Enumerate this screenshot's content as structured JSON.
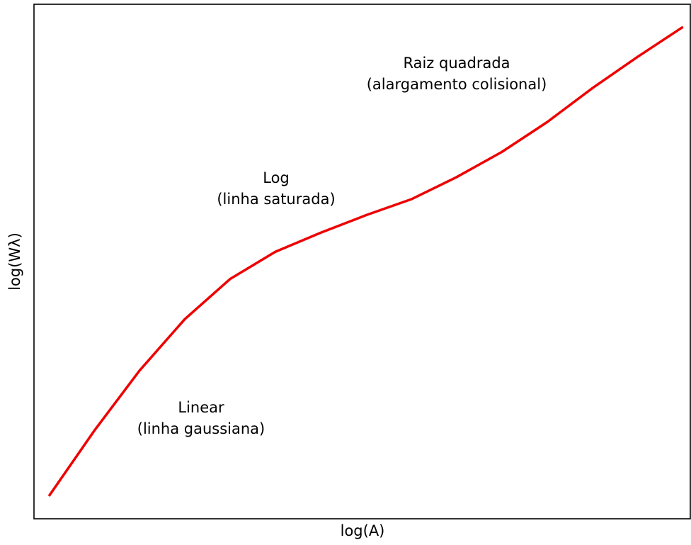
{
  "chart_data": {
    "type": "line",
    "xlabel": "log(A)",
    "ylabel": "log(Wλ)",
    "x": [
      0,
      1,
      2,
      3,
      4,
      5,
      6,
      7,
      8,
      9,
      10,
      11,
      12,
      13,
      14
    ],
    "series": [
      {
        "color": "#ee0000",
        "values": [
          0.44,
          1.71,
          2.88,
          3.88,
          4.66,
          5.19,
          5.56,
          5.9,
          6.21,
          6.64,
          7.13,
          7.71,
          8.37,
          8.98,
          9.56
        ]
      }
    ],
    "xlim": [
      -0.33,
      14.16
    ],
    "ylim": [
      0,
      10
    ],
    "annotations": [
      [
        "Linear",
        "(linha gaussiana)"
      ],
      [
        "Log",
        "(linha saturada)"
      ],
      [
        "Raiz quadrada",
        "(alargamento colisional)"
      ]
    ]
  }
}
